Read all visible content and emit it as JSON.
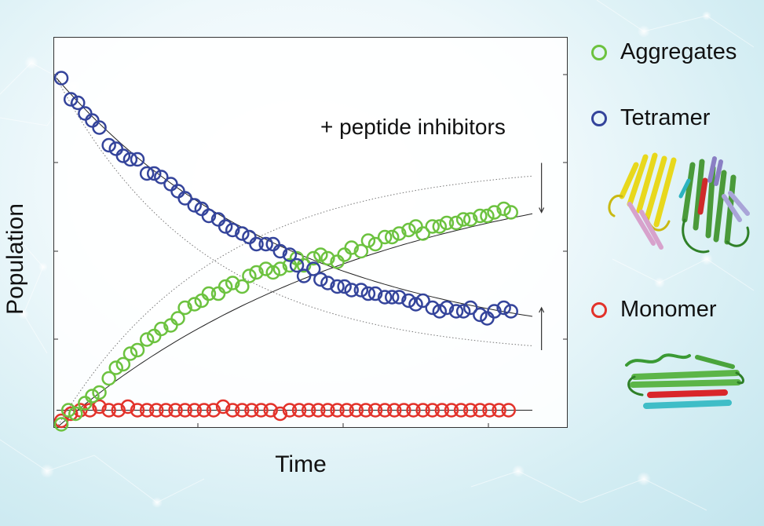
{
  "colors": {
    "aggregates": "#6cc23f",
    "tetramer": "#34449b",
    "monomer": "#e2322a"
  },
  "annotation": "+ peptide inhibitors",
  "legend": [
    {
      "key": "aggregates",
      "label": "Aggregates"
    },
    {
      "key": "tetramer",
      "label": "Tetramer"
    },
    {
      "key": "monomer",
      "label": "Monomer"
    }
  ],
  "images": {
    "tetramer": "tetramer protein structure ribbon (yellow, pink, green, purple, red)",
    "monomer": "monomer protein structure ribbon (green, red, cyan)"
  },
  "chart_data": {
    "type": "scatter",
    "xlabel": "Time",
    "ylabel": "Population",
    "xlim": [
      0,
      1
    ],
    "ylim": [
      0,
      1
    ],
    "series": [
      {
        "name": "Tetramer",
        "key": "tetramer",
        "x": [
          0.01,
          0.03,
          0.045,
          0.06,
          0.075,
          0.09,
          0.11,
          0.125,
          0.14,
          0.155,
          0.17,
          0.19,
          0.205,
          0.22,
          0.24,
          0.255,
          0.27,
          0.29,
          0.305,
          0.32,
          0.34,
          0.355,
          0.37,
          0.39,
          0.405,
          0.42,
          0.44,
          0.455,
          0.47,
          0.49,
          0.505,
          0.52,
          0.54,
          0.555,
          0.57,
          0.59,
          0.605,
          0.62,
          0.64,
          0.655,
          0.67,
          0.69,
          0.705,
          0.72,
          0.74,
          0.755,
          0.77,
          0.79,
          0.805,
          0.82,
          0.84,
          0.855,
          0.87,
          0.89,
          0.905,
          0.92,
          0.94,
          0.955
        ],
        "values": [
          0.99,
          0.93,
          0.92,
          0.89,
          0.87,
          0.85,
          0.8,
          0.79,
          0.77,
          0.76,
          0.76,
          0.72,
          0.72,
          0.71,
          0.69,
          0.67,
          0.65,
          0.63,
          0.62,
          0.6,
          0.59,
          0.57,
          0.56,
          0.55,
          0.54,
          0.52,
          0.52,
          0.52,
          0.5,
          0.49,
          0.46,
          0.43,
          0.45,
          0.42,
          0.41,
          0.4,
          0.4,
          0.39,
          0.39,
          0.38,
          0.38,
          0.37,
          0.37,
          0.37,
          0.36,
          0.35,
          0.36,
          0.34,
          0.33,
          0.34,
          0.33,
          0.33,
          0.34,
          0.32,
          0.31,
          0.33,
          0.34,
          0.33
        ]
      },
      {
        "name": "Aggregates",
        "key": "aggregates",
        "x": [
          0.01,
          0.025,
          0.04,
          0.06,
          0.075,
          0.09,
          0.11,
          0.125,
          0.14,
          0.155,
          0.17,
          0.19,
          0.205,
          0.22,
          0.24,
          0.255,
          0.27,
          0.29,
          0.305,
          0.32,
          0.34,
          0.355,
          0.37,
          0.39,
          0.405,
          0.42,
          0.44,
          0.455,
          0.47,
          0.49,
          0.505,
          0.52,
          0.54,
          0.555,
          0.57,
          0.59,
          0.605,
          0.62,
          0.64,
          0.655,
          0.67,
          0.69,
          0.705,
          0.72,
          0.74,
          0.755,
          0.77,
          0.79,
          0.805,
          0.82,
          0.84,
          0.855,
          0.87,
          0.89,
          0.905,
          0.92,
          0.94,
          0.955
        ],
        "values": [
          0.01,
          0.05,
          0.04,
          0.07,
          0.09,
          0.1,
          0.14,
          0.17,
          0.18,
          0.21,
          0.22,
          0.25,
          0.26,
          0.28,
          0.29,
          0.31,
          0.34,
          0.35,
          0.36,
          0.38,
          0.38,
          0.4,
          0.41,
          0.4,
          0.43,
          0.44,
          0.45,
          0.44,
          0.45,
          0.46,
          0.48,
          0.46,
          0.48,
          0.49,
          0.48,
          0.47,
          0.49,
          0.51,
          0.5,
          0.53,
          0.52,
          0.54,
          0.54,
          0.55,
          0.56,
          0.57,
          0.55,
          0.57,
          0.57,
          0.58,
          0.58,
          0.59,
          0.59,
          0.6,
          0.6,
          0.61,
          0.62,
          0.61
        ]
      },
      {
        "name": "Monomer",
        "key": "monomer",
        "x": [
          0.01,
          0.03,
          0.05,
          0.07,
          0.09,
          0.11,
          0.13,
          0.15,
          0.17,
          0.19,
          0.21,
          0.23,
          0.25,
          0.27,
          0.29,
          0.31,
          0.33,
          0.35,
          0.37,
          0.39,
          0.41,
          0.43,
          0.45,
          0.47,
          0.49,
          0.51,
          0.53,
          0.55,
          0.57,
          0.59,
          0.61,
          0.63,
          0.65,
          0.67,
          0.69,
          0.71,
          0.73,
          0.75,
          0.77,
          0.79,
          0.81,
          0.83,
          0.85,
          0.87,
          0.89,
          0.91,
          0.93,
          0.95
        ],
        "values": [
          0.02,
          0.04,
          0.05,
          0.05,
          0.06,
          0.05,
          0.05,
          0.06,
          0.05,
          0.05,
          0.05,
          0.05,
          0.05,
          0.05,
          0.05,
          0.05,
          0.05,
          0.06,
          0.05,
          0.05,
          0.05,
          0.05,
          0.05,
          0.04,
          0.05,
          0.05,
          0.05,
          0.05,
          0.05,
          0.05,
          0.05,
          0.05,
          0.05,
          0.05,
          0.05,
          0.05,
          0.05,
          0.05,
          0.05,
          0.05,
          0.05,
          0.05,
          0.05,
          0.05,
          0.05,
          0.05,
          0.05,
          0.05
        ]
      }
    ],
    "fits": [
      {
        "key": "tetramer",
        "a": 0.99,
        "b": 0.21,
        "k": 2.0
      },
      {
        "key": "aggregates",
        "a": 0.0,
        "b": 0.78,
        "k": 1.5
      },
      {
        "key": "monomer",
        "a": 0.05,
        "b": 0.05,
        "k": 1.0
      }
    ],
    "inhibited_fits": [
      {
        "key": "tetramer",
        "a": 0.99,
        "b": 0.2,
        "k": 3.2
      },
      {
        "key": "aggregates",
        "a": 0.0,
        "b": 0.75,
        "k": 3.0
      }
    ],
    "arrows": [
      {
        "key": "aggregates",
        "x": 0.94,
        "from": 0.75,
        "to": 0.61,
        "direction": "down"
      },
      {
        "key": "tetramer",
        "x": 0.94,
        "from": 0.22,
        "to": 0.34,
        "direction": "up"
      }
    ],
    "grid": false,
    "legend_position": "right"
  }
}
